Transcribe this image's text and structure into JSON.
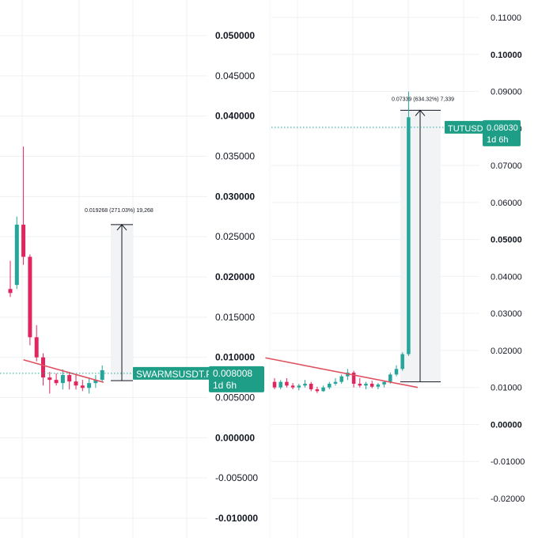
{
  "chart_data": [
    {
      "type": "candlestick",
      "symbol": "SWARMSUSDT.P",
      "last_price": "0.008008",
      "countdown": "1d 6h",
      "price_scale": {
        "min": -0.01,
        "max": 0.05,
        "ticks": [
          "0.050000",
          "0.045000",
          "0.040000",
          "0.035000",
          "0.030000",
          "0.025000",
          "0.020000",
          "0.015000",
          "0.010000",
          "0.005000",
          "0.000000",
          "-0.005000",
          "-0.010000"
        ],
        "bold_ticks": [
          "0.050000",
          "0.040000",
          "0.030000",
          "0.020000",
          "0.010000",
          "0.000000",
          "-0.010000"
        ]
      },
      "candles": [
        {
          "o": 0.0185,
          "h": 0.022,
          "l": 0.0175,
          "c": 0.018
        },
        {
          "o": 0.019,
          "h": 0.0275,
          "l": 0.0185,
          "c": 0.0265
        },
        {
          "o": 0.0265,
          "h": 0.0362,
          "l": 0.0215,
          "c": 0.0225
        },
        {
          "o": 0.0225,
          "h": 0.0228,
          "l": 0.0115,
          "c": 0.0125
        },
        {
          "o": 0.0125,
          "h": 0.014,
          "l": 0.0095,
          "c": 0.01
        },
        {
          "o": 0.01,
          "h": 0.0105,
          "l": 0.0065,
          "c": 0.0075
        },
        {
          "o": 0.0075,
          "h": 0.0082,
          "l": 0.0055,
          "c": 0.0072
        },
        {
          "o": 0.0072,
          "h": 0.008,
          "l": 0.0065,
          "c": 0.0068
        },
        {
          "o": 0.0068,
          "h": 0.0085,
          "l": 0.006,
          "c": 0.0078
        },
        {
          "o": 0.0078,
          "h": 0.0082,
          "l": 0.006,
          "c": 0.007
        },
        {
          "o": 0.007,
          "h": 0.0078,
          "l": 0.006,
          "c": 0.0065
        },
        {
          "o": 0.0065,
          "h": 0.0072,
          "l": 0.0058,
          "c": 0.0062
        },
        {
          "o": 0.0062,
          "h": 0.0075,
          "l": 0.0055,
          "c": 0.0068
        },
        {
          "o": 0.0068,
          "h": 0.0078,
          "l": 0.0062,
          "c": 0.0072
        },
        {
          "o": 0.0072,
          "h": 0.009,
          "l": 0.007,
          "c": 0.0084
        }
      ],
      "trendline": {
        "x0": 2,
        "y0": 0.0097,
        "x1": 14.2,
        "y1": 0.0069
      },
      "measure": {
        "label": "0.019268 (271.03%) 19,268",
        "from": 0.0071,
        "to": 0.0265
      }
    },
    {
      "type": "candlestick",
      "symbol": "TUTUSDT",
      "last_price": "0.08030",
      "countdown": "1d 6h",
      "price_scale": {
        "min": -0.02,
        "max": 0.11,
        "ticks": [
          "0.11000",
          "0.10000",
          "0.09000",
          "0.08000",
          "0.07000",
          "0.06000",
          "0.05000",
          "0.04000",
          "0.03000",
          "0.02000",
          "0.01000",
          "0.00000",
          "-0.01000",
          "-0.02000"
        ],
        "bold_ticks": [
          "0.10000",
          "0.05000",
          "0.00000"
        ]
      },
      "candles": [
        {
          "o": 0.0115,
          "h": 0.0125,
          "l": 0.0095,
          "c": 0.01
        },
        {
          "o": 0.01,
          "h": 0.012,
          "l": 0.0095,
          "c": 0.0115
        },
        {
          "o": 0.0115,
          "h": 0.0125,
          "l": 0.01,
          "c": 0.0105
        },
        {
          "o": 0.0105,
          "h": 0.0112,
          "l": 0.0095,
          "c": 0.01
        },
        {
          "o": 0.01,
          "h": 0.011,
          "l": 0.0092,
          "c": 0.0105
        },
        {
          "o": 0.0105,
          "h": 0.012,
          "l": 0.01,
          "c": 0.011
        },
        {
          "o": 0.011,
          "h": 0.0115,
          "l": 0.009,
          "c": 0.0095
        },
        {
          "o": 0.0095,
          "h": 0.0102,
          "l": 0.0085,
          "c": 0.009
        },
        {
          "o": 0.009,
          "h": 0.0105,
          "l": 0.0088,
          "c": 0.01
        },
        {
          "o": 0.01,
          "h": 0.0115,
          "l": 0.0095,
          "c": 0.011
        },
        {
          "o": 0.011,
          "h": 0.0125,
          "l": 0.0105,
          "c": 0.0115
        },
        {
          "o": 0.0115,
          "h": 0.0135,
          "l": 0.011,
          "c": 0.013
        },
        {
          "o": 0.013,
          "h": 0.015,
          "l": 0.012,
          "c": 0.014
        },
        {
          "o": 0.014,
          "h": 0.0145,
          "l": 0.01,
          "c": 0.011
        },
        {
          "o": 0.011,
          "h": 0.0125,
          "l": 0.01,
          "c": 0.0105
        },
        {
          "o": 0.0105,
          "h": 0.0115,
          "l": 0.0095,
          "c": 0.011
        },
        {
          "o": 0.011,
          "h": 0.0118,
          "l": 0.0098,
          "c": 0.0102
        },
        {
          "o": 0.0102,
          "h": 0.0112,
          "l": 0.0095,
          "c": 0.0108
        },
        {
          "o": 0.0108,
          "h": 0.0118,
          "l": 0.01,
          "c": 0.0115
        },
        {
          "o": 0.0115,
          "h": 0.014,
          "l": 0.011,
          "c": 0.0135
        },
        {
          "o": 0.0135,
          "h": 0.016,
          "l": 0.013,
          "c": 0.015
        },
        {
          "o": 0.015,
          "h": 0.0195,
          "l": 0.0145,
          "c": 0.019
        },
        {
          "o": 0.019,
          "h": 0.09,
          "l": 0.0185,
          "c": 0.083
        }
      ],
      "trendline": {
        "x0": -1.5,
        "y0": 0.018,
        "x1": 23.5,
        "y1": 0.01
      },
      "measure": {
        "label": "0.07339 (634.32%) 7,339",
        "from": 0.0115,
        "to": 0.0849
      }
    }
  ],
  "colors": {
    "up": "#26a69a",
    "down": "#e0255f",
    "trendline": "#e05260",
    "badge": "#1e9e86",
    "grid": "#eef0f3",
    "text": "#131722"
  }
}
